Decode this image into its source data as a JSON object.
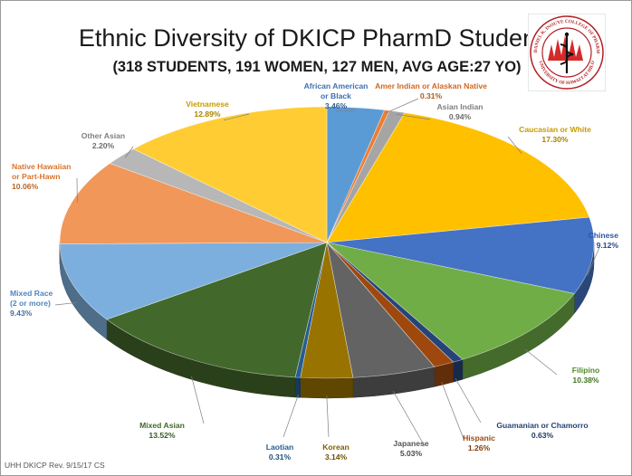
{
  "title": "Ethnic Diversity of DKICP PharmD Students",
  "subtitle": "(318 STUDENTS, 191 WOMEN, 127 MEN, AVG AGE:27 YO)",
  "footer": "UHH DKICP Rev. 9/15/17  CS",
  "logo": {
    "arc_text_top": "THE DANIEL K. INOUYE COLLEGE OF PHARMACY",
    "arc_text_bottom": "UNIVERSITY OF HAWAI'I AT HILO"
  },
  "chart_data": {
    "type": "pie",
    "title": "Ethnic Diversity of DKICP PharmD Students",
    "subtitle": "(318 STUDENTS, 191 WOMEN, 127 MEN, AVG AGE:27 YO)",
    "slices": [
      {
        "label": [
          "African American",
          "or Black"
        ],
        "value": 3.46,
        "pct_text": "3.46%",
        "color": "#5b9bd5",
        "label_color": "#3f6fb0"
      },
      {
        "label": [
          "Amer Indian or Alaskan Native"
        ],
        "value": 0.31,
        "pct_text": "0.31%",
        "color": "#ed7d31",
        "label_color": "#d0671f"
      },
      {
        "label": [
          "Asian Indian"
        ],
        "value": 0.94,
        "pct_text": "0.94%",
        "color": "#a5a5a5",
        "label_color": "#7f7f7f"
      },
      {
        "label": [
          "Caucasian or White"
        ],
        "value": 17.3,
        "pct_text": "17.30%",
        "color": "#ffc000",
        "label_color": "#c99a00"
      },
      {
        "label": [
          "Chinese"
        ],
        "value": 9.12,
        "pct_text": "9.12%",
        "color": "#4472c4",
        "label_color": "#2f54a0"
      },
      {
        "label": [
          "Filipino"
        ],
        "value": 10.38,
        "pct_text": "10.38%",
        "color": "#70ad47",
        "label_color": "#4c8a2a"
      },
      {
        "label": [
          "Guamanian or Chamorro"
        ],
        "value": 0.63,
        "pct_text": "0.63%",
        "color": "#264478",
        "label_color": "#264478"
      },
      {
        "label": [
          "Hispanic"
        ],
        "value": 1.26,
        "pct_text": "1.26%",
        "color": "#9e480e",
        "label_color": "#9e480e"
      },
      {
        "label": [
          "Japanese"
        ],
        "value": 5.03,
        "pct_text": "5.03%",
        "color": "#636363",
        "label_color": "#555555"
      },
      {
        "label": [
          "Korean"
        ],
        "value": 3.14,
        "pct_text": "3.14%",
        "color": "#997300",
        "label_color": "#806000"
      },
      {
        "label": [
          "Laotian"
        ],
        "value": 0.31,
        "pct_text": "0.31%",
        "color": "#255e91",
        "label_color": "#255e91"
      },
      {
        "label": [
          "Mixed Asian"
        ],
        "value": 13.52,
        "pct_text": "13.52%",
        "color": "#43682b",
        "label_color": "#43682b"
      },
      {
        "label": [
          "Mixed Race",
          "(2 or more)"
        ],
        "value": 9.43,
        "pct_text": "9.43%",
        "color": "#7cafdd",
        "label_color": "#4f86c0"
      },
      {
        "label": [
          "Native Hawaiian",
          "or Part-Hawn"
        ],
        "value": 10.06,
        "pct_text": "10.06%",
        "color": "#f1975a",
        "label_color": "#d8742e"
      },
      {
        "label": [
          "Other Asian"
        ],
        "value": 2.2,
        "pct_text": "2.20%",
        "color": "#b7b7b7",
        "label_color": "#7f7f7f"
      },
      {
        "label": [
          "Vietnamese"
        ],
        "value": 12.89,
        "pct_text": "12.89%",
        "color": "#ffcd33",
        "label_color": "#c99a00"
      }
    ],
    "start_position": "12 o'clock, clockwise",
    "style": "3D tilted pie",
    "legend": "none (data labels with leader lines)"
  }
}
